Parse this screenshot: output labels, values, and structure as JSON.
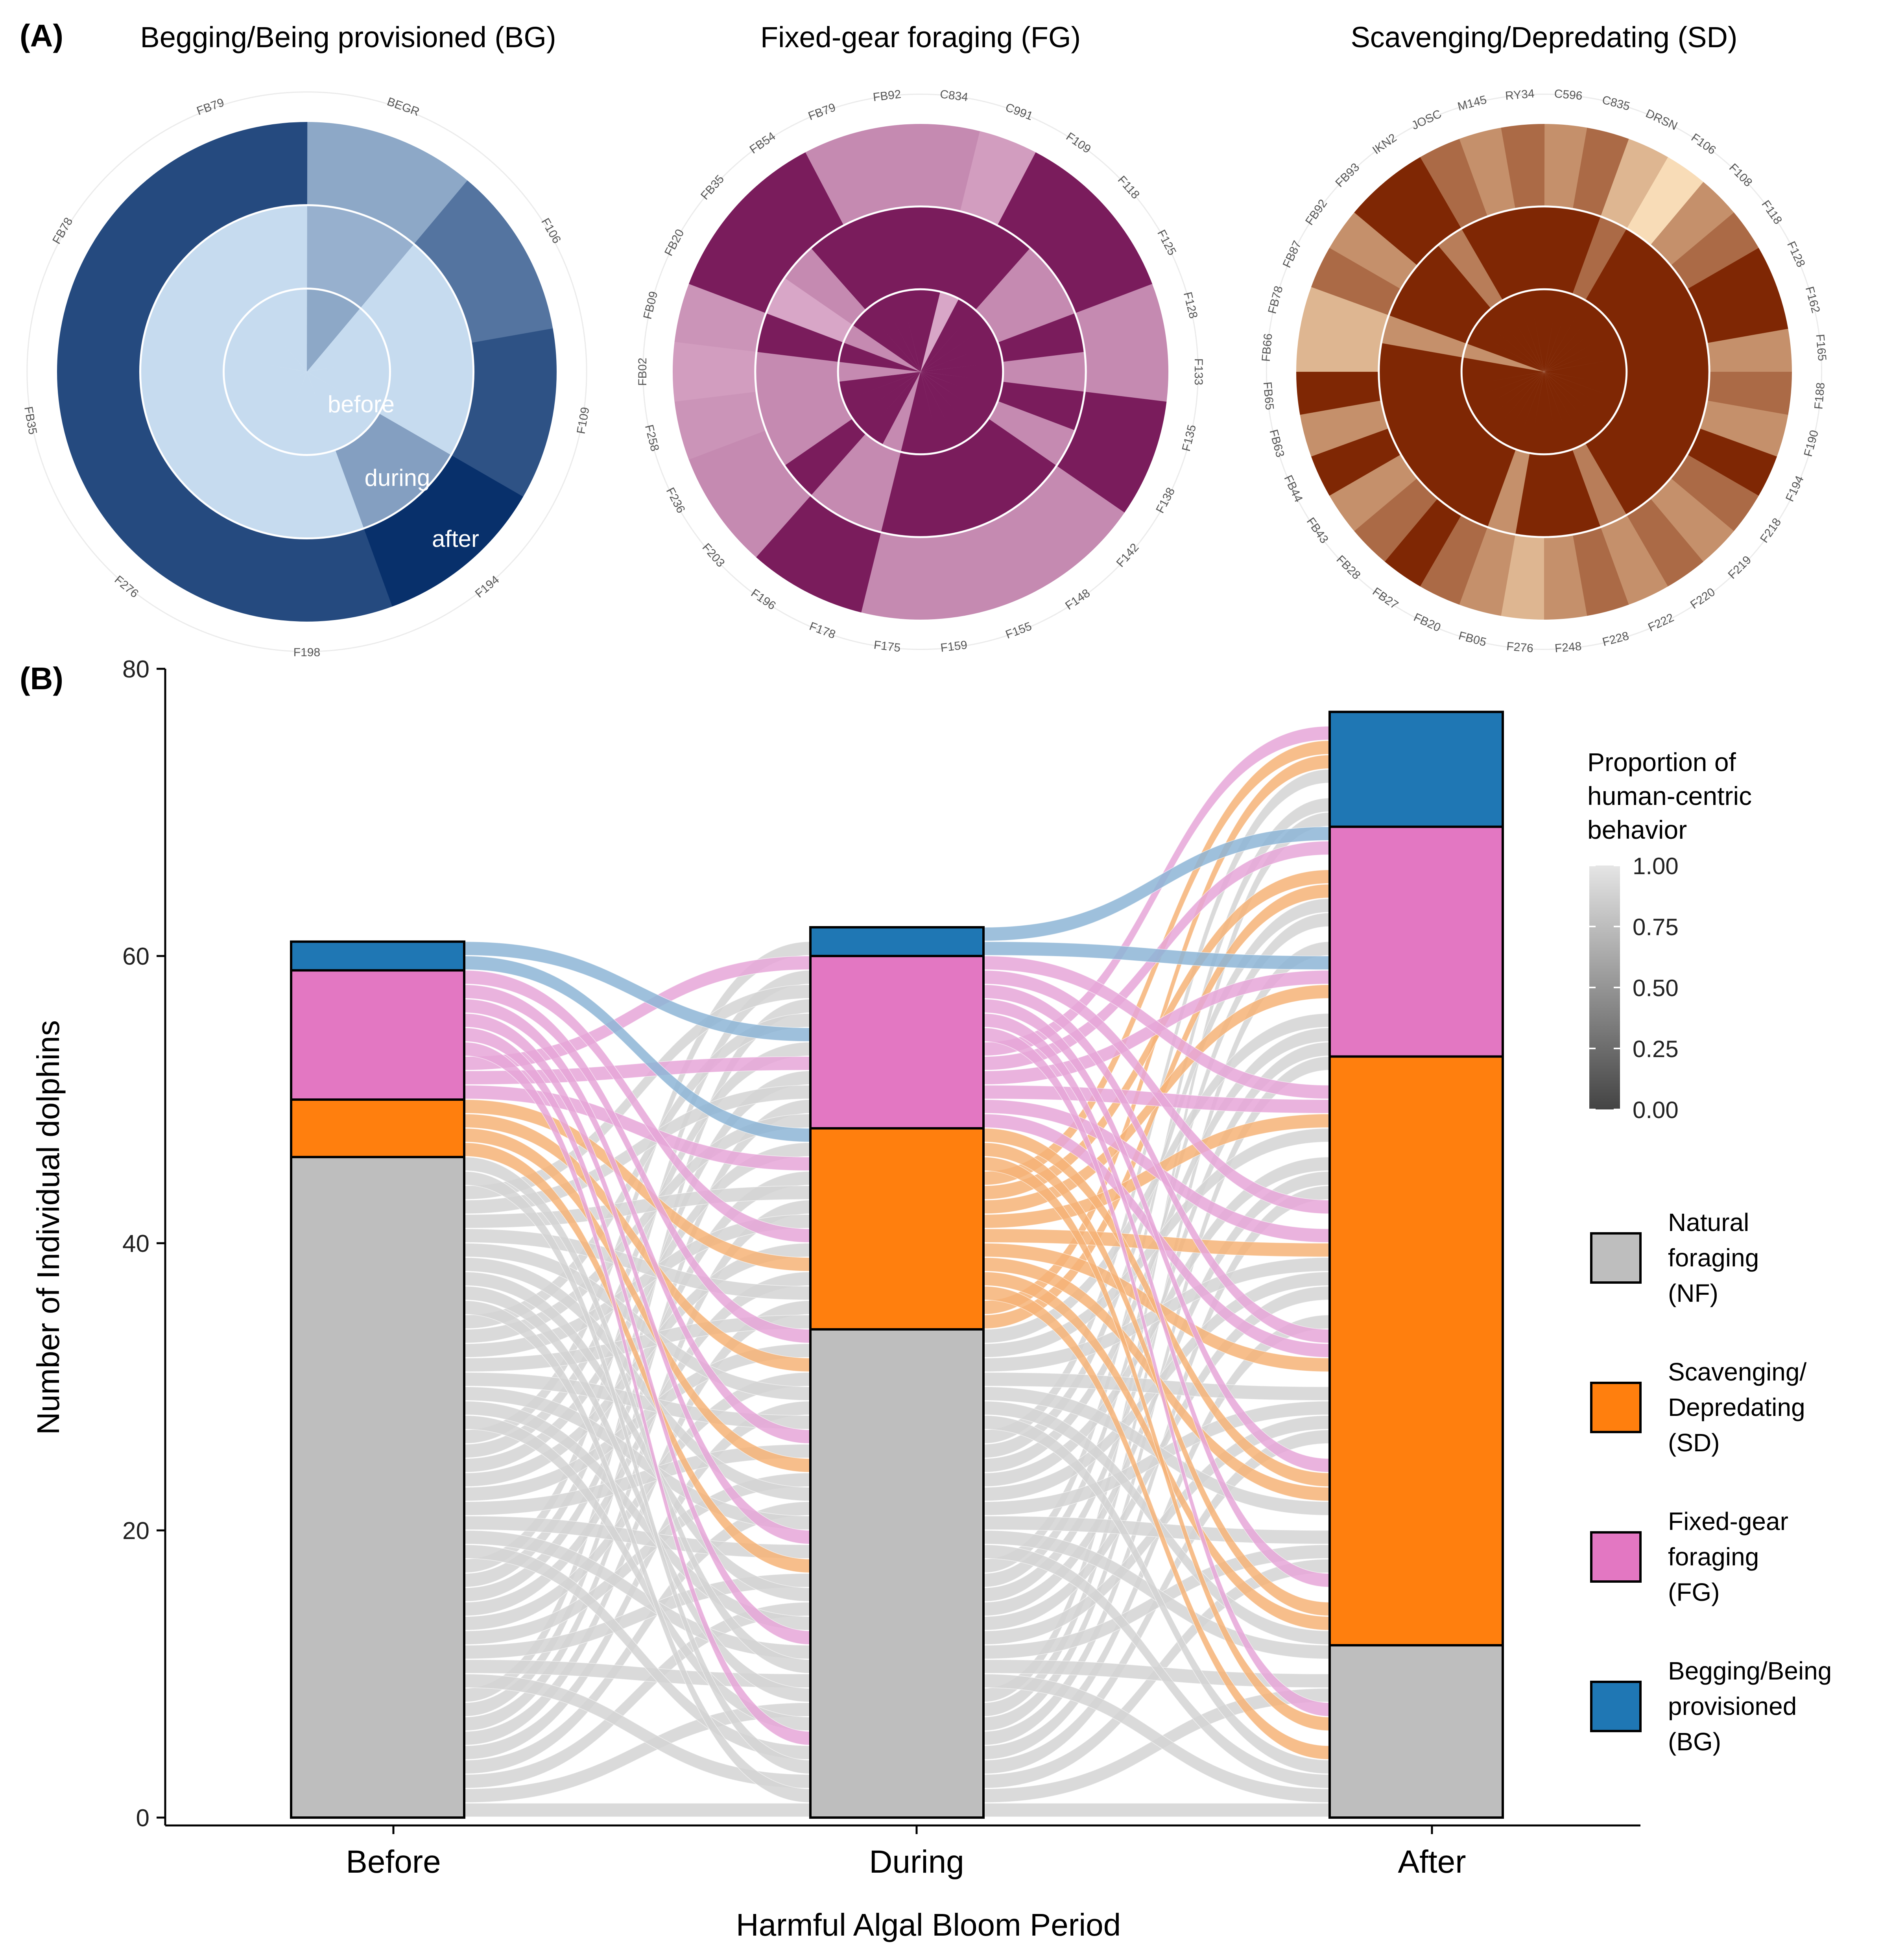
{
  "panels": {
    "a_label": "(A)",
    "b_label": "(B)"
  },
  "colors": {
    "NF": "#bebebe",
    "SD": "#ff7f0e",
    "FG": "#e377c2",
    "BG": "#1f77b4",
    "flow_NF": "#d3d3d3",
    "flow_SD": "#f6b377",
    "flow_FG": "#e6a6d8",
    "flow_BG": "#8db5d6"
  },
  "chart_data": [
    {
      "type": "polar",
      "title": "Begging/Being provisioned (BG)",
      "ring_labels": [
        "before",
        "during",
        "after"
      ],
      "individuals": [
        "BEGR",
        "F106",
        "F109",
        "F194",
        "F198",
        "F276",
        "FB35",
        "FB78",
        "FB79"
      ],
      "rings": {
        "before": [
          0.7,
          1.0,
          1.0,
          1.0,
          1.0,
          1.0,
          1.0,
          1.0,
          1.0
        ],
        "during": [
          0.75,
          1.0,
          1.0,
          0.65,
          1.0,
          1.0,
          1.0,
          1.0,
          1.0
        ],
        "after": [
          0.7,
          0.4,
          0.2,
          0.0,
          0.15,
          0.15,
          0.15,
          0.15,
          0.15
        ]
      }
    },
    {
      "type": "polar",
      "title": "Fixed-gear foraging (FG)",
      "individuals": [
        "C834",
        "C991",
        "F109",
        "F118",
        "F125",
        "F128",
        "F133",
        "F135",
        "F138",
        "F142",
        "F148",
        "F155",
        "F159",
        "F175",
        "F178",
        "F196",
        "F203",
        "F236",
        "F258",
        "FB02",
        "FB09",
        "FB20",
        "FB35",
        "FB54",
        "FB79",
        "FB92"
      ],
      "rings": {
        "before": [
          0.0,
          0.75,
          0.0,
          0.0,
          0.0,
          0.0,
          0.0,
          0.0,
          0.0,
          0.0,
          0.0,
          0.0,
          0.0,
          0.0,
          0.6,
          0.0,
          0.0,
          0.0,
          0.0,
          0.6,
          0.0,
          0.6,
          0.0,
          0.0,
          0.0,
          0.0
        ],
        "during": [
          0.0,
          0.0,
          0.0,
          0.6,
          0.6,
          0.0,
          0.6,
          0.0,
          0.6,
          0.0,
          0.0,
          0.0,
          0.0,
          0.0,
          0.6,
          0.6,
          0.0,
          0.6,
          0.6,
          0.6,
          0.0,
          0.75,
          0.6,
          0.0,
          0.0,
          0.0
        ],
        "after": [
          0.6,
          0.7,
          0.0,
          0.0,
          0.0,
          0.6,
          0.6,
          0.0,
          0.0,
          0.6,
          0.6,
          0.6,
          0.6,
          0.6,
          0.0,
          0.0,
          0.6,
          0.6,
          0.65,
          0.7,
          0.65,
          0.0,
          0.0,
          0.0,
          0.6,
          0.6
        ]
      }
    },
    {
      "type": "polar",
      "title": "Scavenging/Depredating (SD)",
      "individuals": [
        "C596",
        "C835",
        "DRSN",
        "F106",
        "F108",
        "F118",
        "F128",
        "F162",
        "F165",
        "F188",
        "F190",
        "F194",
        "F218",
        "F219",
        "F220",
        "F222",
        "F228",
        "F248",
        "F276",
        "FB05",
        "FB20",
        "FB27",
        "FB28",
        "FB43",
        "FB44",
        "FB63",
        "FB65",
        "FB66",
        "FB78",
        "FB87",
        "FB92",
        "FB93",
        "IKN2",
        "JOSC",
        "M145",
        "RY34"
      ],
      "rings": {
        "before": [
          0.0,
          0.0,
          0.0,
          0.0,
          0.0,
          0.0,
          0.0,
          0.0,
          0.0,
          0.0,
          0.0,
          0.0,
          0.0,
          0.0,
          0.0,
          0.0,
          0.0,
          0.0,
          0.0,
          0.0,
          0.0,
          0.0,
          0.0,
          0.0,
          0.0,
          0.0,
          0.0,
          0.0,
          0.55,
          0.0,
          0.0,
          0.0,
          0.0,
          0.0,
          0.0,
          0.0
        ],
        "during": [
          0.0,
          0.0,
          0.35,
          0.0,
          0.0,
          0.0,
          0.0,
          0.0,
          0.0,
          0.0,
          0.0,
          0.0,
          0.0,
          0.0,
          0.0,
          0.45,
          0.0,
          0.0,
          0.0,
          0.55,
          0.0,
          0.0,
          0.0,
          0.0,
          0.0,
          0.0,
          0.0,
          0.0,
          0.55,
          0.0,
          0.0,
          0.0,
          0.45,
          0.0,
          0.0,
          0.0
        ],
        "after": [
          0.55,
          0.35,
          0.75,
          0.95,
          0.55,
          0.35,
          0.0,
          0.0,
          0.55,
          0.35,
          0.55,
          0.0,
          0.35,
          0.55,
          0.35,
          0.55,
          0.35,
          0.55,
          0.75,
          0.55,
          0.35,
          0.0,
          0.35,
          0.55,
          0.0,
          0.55,
          0.0,
          0.75,
          0.75,
          0.35,
          0.55,
          0.0,
          0.0,
          0.35,
          0.55,
          0.35
        ]
      }
    },
    {
      "type": "alluvial",
      "xlabel": "Harmful Algal Bloom Period",
      "ylabel": "Number of Individual dolphins",
      "categories": [
        "Before",
        "During",
        "After"
      ],
      "ylim": [
        0,
        80
      ],
      "yticks": [
        0,
        20,
        40,
        60,
        80
      ],
      "stacks": {
        "Before": {
          "NF": 46,
          "SD": 4,
          "FG": 9,
          "BG": 2
        },
        "During": {
          "NF": 34,
          "SD": 14,
          "FG": 12,
          "BG": 2
        },
        "After": {
          "NF": 12,
          "SD": 41,
          "FG": 16,
          "BG": 8
        }
      },
      "legend": {
        "colorbar_title": [
          "Proportion of",
          "human-centric",
          "behavior"
        ],
        "colorbar_ticks": [
          "1.00",
          "0.75",
          "0.50",
          "0.25",
          "0.00"
        ],
        "entries": [
          {
            "key": "NF",
            "lines": [
              "Natural",
              "foraging",
              "(NF)"
            ]
          },
          {
            "key": "SD",
            "lines": [
              "Scavenging/",
              "Depredating",
              "(SD)"
            ]
          },
          {
            "key": "FG",
            "lines": [
              "Fixed-gear",
              "foraging",
              "(FG)"
            ]
          },
          {
            "key": "BG",
            "lines": [
              "Begging/Being",
              "provisioned",
              "(BG)"
            ]
          }
        ]
      }
    }
  ]
}
